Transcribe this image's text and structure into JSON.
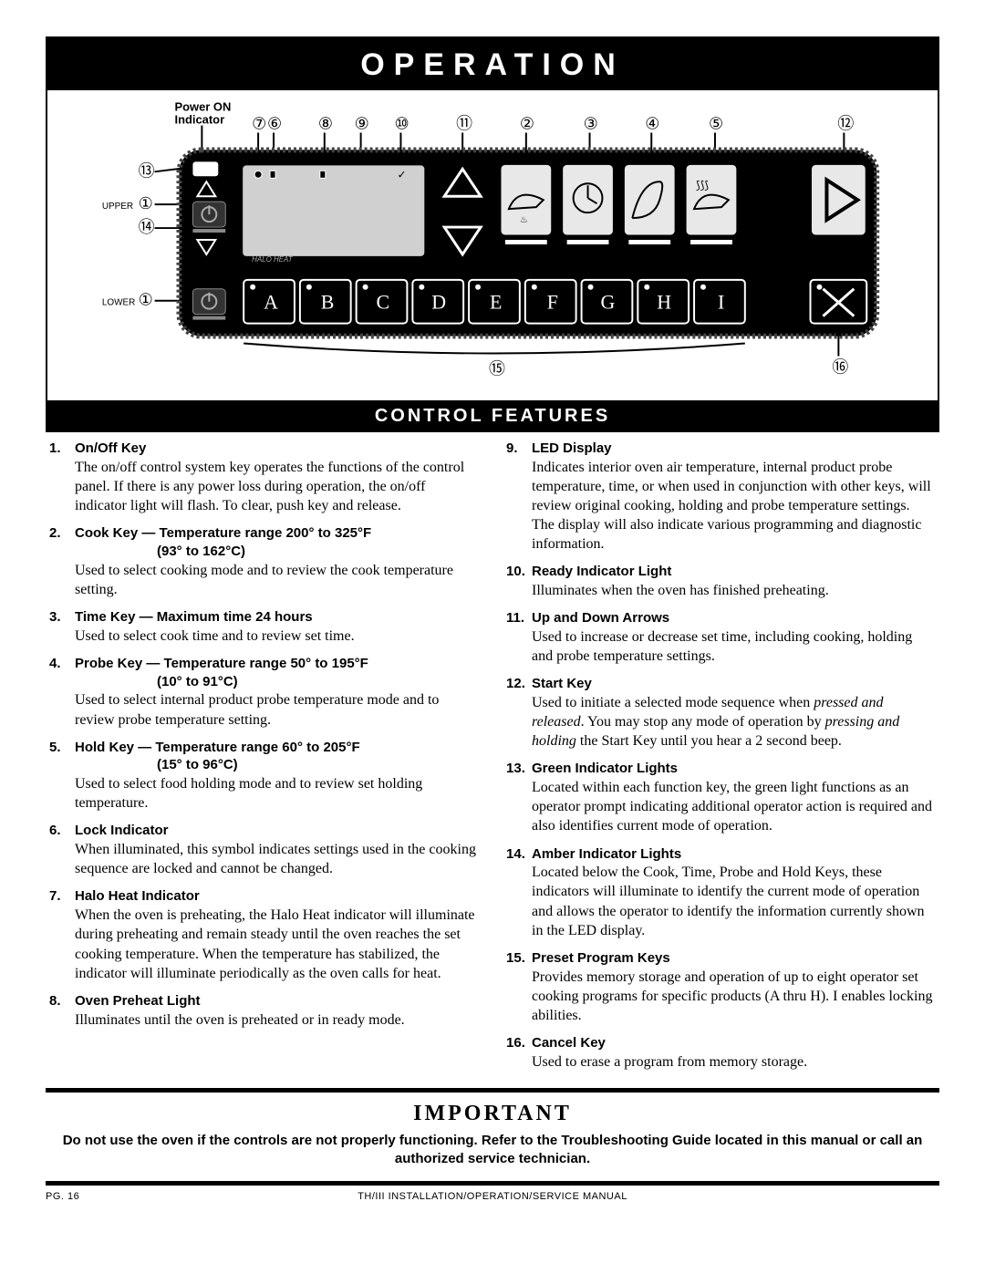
{
  "header": {
    "title": "OPERATION"
  },
  "panel": {
    "power_label_1": "Power ON",
    "power_label_2": "Indicator",
    "upper_label": "UPPER",
    "lower_label": "LOWER",
    "callouts_top": [
      "⑦",
      "⑥",
      "⑧",
      "⑨",
      "⑩",
      "⑪",
      "②",
      "③",
      "④",
      "⑤",
      "⑫"
    ],
    "callouts_left": [
      "⑬",
      "①",
      "⑭",
      "①"
    ],
    "callout_bottom_center": "⑮",
    "callout_bottom_right": "⑯",
    "preset_keys": [
      "A",
      "B",
      "C",
      "D",
      "E",
      "F",
      "G",
      "H",
      "I"
    ],
    "halo_heat": "HALO HEAT",
    "colors": {
      "panel_bg": "#000000",
      "display_bg": "#cfd0cf",
      "key_bg": "#e8e8e8",
      "key_border": "#000000",
      "arrow": "#ffffff",
      "amber": "#ffffff"
    }
  },
  "subheader": {
    "title": "CONTROL FEATURES"
  },
  "features_left": [
    {
      "title": "On/Off Key",
      "sub": "",
      "body": "The on/off control system key operates the functions of the control panel.  If there is any power loss during operation, the on/off indicator light will flash.  To clear, push key and release."
    },
    {
      "title": "Cook Key — Temperature range 200° to 325°F",
      "sub": "(93° to 162°C)",
      "body": "Used to select cooking mode and to review the cook temperature setting."
    },
    {
      "title": "Time Key — Maximum time 24 hours",
      "sub": "",
      "body": "Used to select cook time and to review set time."
    },
    {
      "title": "Probe Key — Temperature range 50° to 195°F",
      "sub": "(10° to 91°C)",
      "body": "Used to select internal product probe temperature mode and to review probe temperature setting."
    },
    {
      "title": "Hold Key — Temperature range 60° to 205°F",
      "sub": "(15° to 96°C)",
      "body": "Used to select food holding mode and to review set holding temperature."
    },
    {
      "title": "Lock Indicator",
      "sub": "",
      "body": "When illuminated, this symbol indicates settings used in the cooking sequence are locked and cannot be changed."
    },
    {
      "title": "Halo Heat Indicator",
      "sub": "",
      "body": "When the oven is preheating, the Halo Heat indicator will illuminate during preheating and remain steady until the oven reaches the set cooking temperature.  When the temperature has stabilized, the indicator will illuminate periodically as the oven calls for heat."
    },
    {
      "title": "Oven Preheat Light",
      "sub": "",
      "body": "Illuminates until the oven is preheated or in ready mode."
    }
  ],
  "features_right": [
    {
      "title": "LED Display",
      "sub": "",
      "body": "Indicates interior oven air temperature, internal product probe temperature, time, or when used in conjunction with other keys, will review original cooking, holding and probe temperature settings.  The display will also indicate various programming and diagnostic information."
    },
    {
      "title": "Ready Indicator Light",
      "sub": "",
      "body": "Illuminates when the oven has finished preheating."
    },
    {
      "title": "Up and Down Arrows",
      "sub": "",
      "body": "Used to increase or decrease set time, including cooking, holding and probe temperature settings."
    },
    {
      "title": "Start Key",
      "sub": "",
      "body_html": "Used to initiate a selected mode sequence when <em>pressed and released</em>.  You may stop any mode of operation by <em>pressing and holding</em> the Start Key until you hear a 2 second beep."
    },
    {
      "title": "Green Indicator Lights",
      "sub": "",
      "body": "Located within each function key, the green light functions as an operator prompt indicating additional operator action is required and also identifies current mode of operation."
    },
    {
      "title": "Amber Indicator Lights",
      "sub": "",
      "body": "Located below the Cook, Time, Probe and Hold Keys, these indicators will illuminate to identify the current mode of operation and allows the operator to identify the information currently shown in the LED display."
    },
    {
      "title": "Preset Program Keys",
      "sub": "",
      "body": "Provides memory storage and operation of up to eight operator set cooking programs for specific products (A thru H).  I enables locking abilities."
    },
    {
      "title": "Cancel Key",
      "sub": "",
      "body": "Used to erase a program from memory storage."
    }
  ],
  "important": {
    "title": "IMPORTANT",
    "body": "Do not use the oven if the controls are not properly functioning.  Refer to the Troubleshooting Guide located in this manual or call an authorized service technician."
  },
  "footer": {
    "page_label": "PG.",
    "page_num": "16",
    "manual": "TH/III INSTALLATION/OPERATION/SERVICE MANUAL"
  }
}
